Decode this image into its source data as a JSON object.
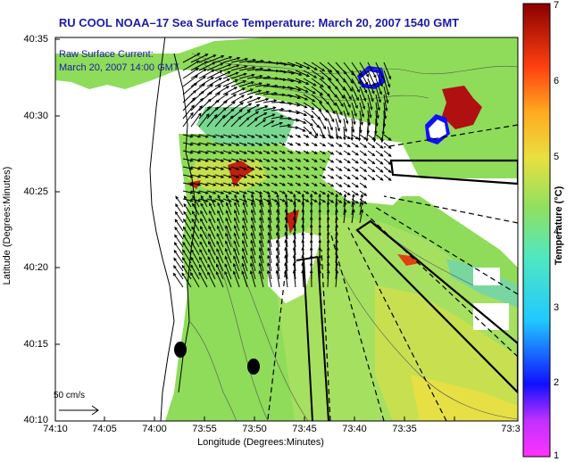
{
  "title": "RU COOL  NOAA–17 Sea Surface Temperature:  March 20, 2007 1540 GMT",
  "inset": {
    "line1": "Raw Surface Current:",
    "line2": "March 20, 2007 14:00 GMT"
  },
  "axes": {
    "xlabel": "Longitude (Degrees:Minutes)",
    "ylabel": "Latitude (Degrees:Minutes)",
    "xticks": [
      "74:10",
      "74:05",
      "74:00",
      "73:55",
      "73:50",
      "73:45",
      "73:40",
      "73:35",
      "73:3"
    ],
    "yticks": [
      "40:35",
      "40:30",
      "40:25",
      "40:20",
      "40:15",
      "40:10"
    ]
  },
  "colorbar": {
    "label": "Temperature (°C)",
    "ticks": [
      "7",
      "6",
      "5",
      "4",
      "3",
      "2",
      "1"
    ],
    "range": [
      1,
      7
    ]
  },
  "scale_arrow": {
    "label": "50 cm/s"
  },
  "colors": {
    "title": "#1a1aa8",
    "land": "#ffffff",
    "sst_dominant": "#8edc5a"
  }
}
